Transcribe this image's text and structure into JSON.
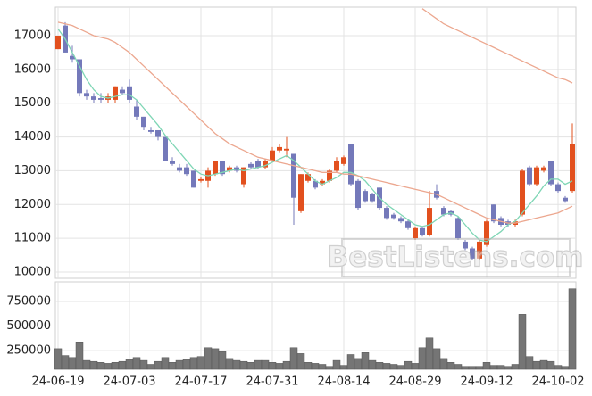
{
  "chart_data": [
    {
      "type": "candlestick",
      "up_color": "#e2501e",
      "down_color": "#7479ba",
      "ylim": [
        9815,
        17845
      ],
      "yticks": [
        10000,
        11000,
        12000,
        13000,
        14000,
        15000,
        16000,
        17000
      ],
      "grid": true,
      "watermark": "BestListens.com",
      "open": [
        16600,
        17300,
        16400,
        16300,
        15300,
        15200,
        15150,
        15100,
        15100,
        15400,
        15500,
        14900,
        14600,
        14200,
        14200,
        14000,
        13300,
        13100,
        13100,
        13000,
        12700,
        12700,
        12900,
        13300,
        13000,
        13100,
        12600,
        13200,
        13300,
        13100,
        13300,
        13600,
        13600,
        13500,
        11800,
        12700,
        12700,
        12600,
        12700,
        13000,
        13200,
        13800,
        12700,
        12400,
        12300,
        12500,
        11900,
        11700,
        11600,
        11500,
        11000,
        11300,
        11100,
        12400,
        11900,
        11800,
        11600,
        10900,
        10700,
        10400,
        10800,
        12000,
        11600,
        11500,
        11400,
        11700,
        13100,
        12600,
        13000,
        13300,
        12600,
        12200,
        12400
      ],
      "high": [
        17000,
        17400,
        16700,
        16300,
        15400,
        15300,
        15300,
        15300,
        15500,
        15500,
        15700,
        15100,
        14600,
        14300,
        14200,
        14000,
        13400,
        13200,
        13200,
        13000,
        12800,
        13100,
        13300,
        13300,
        13150,
        13150,
        13100,
        13250,
        13350,
        13350,
        13700,
        13800,
        14000,
        13500,
        12900,
        12950,
        12750,
        12750,
        13050,
        13400,
        13450,
        13800,
        12750,
        12450,
        12350,
        12500,
        11950,
        11750,
        11650,
        11550,
        11350,
        11350,
        12400,
        12600,
        11950,
        11850,
        11650,
        10950,
        10750,
        10950,
        11550,
        12000,
        11650,
        11550,
        11550,
        13050,
        13150,
        13150,
        13150,
        13300,
        12650,
        12250,
        14400
      ],
      "low": [
        16600,
        16500,
        16200,
        15200,
        15100,
        15000,
        15000,
        15000,
        15000,
        15250,
        15000,
        14500,
        14200,
        14100,
        13900,
        13300,
        13150,
        12950,
        12850,
        12500,
        12650,
        12500,
        12850,
        12850,
        12950,
        12950,
        12500,
        13050,
        13050,
        13050,
        13250,
        13550,
        13400,
        11400,
        11750,
        12650,
        12450,
        12550,
        12650,
        12950,
        13150,
        12550,
        11850,
        12050,
        12050,
        11850,
        11550,
        11550,
        11450,
        11250,
        10950,
        11050,
        11050,
        12150,
        11650,
        11650,
        10950,
        10650,
        10350,
        10350,
        10750,
        11450,
        11350,
        11350,
        11350,
        11650,
        12550,
        12550,
        12950,
        12550,
        12350,
        12050,
        12350
      ],
      "close": [
        17000,
        16500,
        16300,
        15300,
        15200,
        15100,
        15100,
        15200,
        15500,
        15300,
        15100,
        14600,
        14300,
        14150,
        14000,
        13300,
        13200,
        13000,
        12900,
        12500,
        12750,
        13000,
        13300,
        12900,
        13100,
        13000,
        13100,
        13100,
        13100,
        13300,
        13600,
        13700,
        13650,
        12200,
        12900,
        12900,
        12500,
        12700,
        13000,
        13300,
        13400,
        12600,
        11900,
        12100,
        12100,
        11900,
        11600,
        11600,
        11500,
        11300,
        11300,
        11100,
        11900,
        12200,
        11700,
        11700,
        11000,
        10700,
        10400,
        10900,
        11500,
        11500,
        11400,
        11400,
        11500,
        13000,
        12600,
        13100,
        13100,
        12600,
        12400,
        12100,
        13800
      ],
      "series": [
        {
          "name": "MA5",
          "color": "#7fd6b5",
          "values": [
            17200,
            16900,
            16500,
            16100,
            15700,
            15400,
            15200,
            15150,
            15200,
            15250,
            15250,
            15100,
            14850,
            14600,
            14350,
            14050,
            13800,
            13550,
            13300,
            13050,
            12900,
            12850,
            12900,
            12950,
            13000,
            13050,
            13000,
            13050,
            13100,
            13150,
            13250,
            13350,
            13450,
            13300,
            13100,
            12900,
            12700,
            12600,
            12700,
            12800,
            12950,
            12950,
            12850,
            12700,
            12450,
            12200,
            12000,
            11850,
            11700,
            11550,
            11400,
            11350,
            11400,
            11550,
            11700,
            11750,
            11650,
            11400,
            11150,
            10950,
            10900,
            11050,
            11200,
            11400,
            11500,
            11750,
            12000,
            12250,
            12550,
            12750,
            12750,
            12600,
            12700
          ]
        },
        {
          "name": "MA20",
          "color": "#eca78f",
          "values": [
            17400,
            17350,
            17300,
            17200,
            17100,
            17000,
            16950,
            16900,
            16800,
            16650,
            16500,
            16300,
            16100,
            15900,
            15700,
            15500,
            15300,
            15100,
            14900,
            14700,
            14500,
            14300,
            14100,
            13950,
            13800,
            13700,
            13600,
            13500,
            13400,
            13350,
            13300,
            13250,
            13200,
            13150,
            13100,
            13050,
            13000,
            12950,
            12950,
            12950,
            12900,
            12900,
            12850,
            12800,
            12750,
            12700,
            12650,
            12600,
            12550,
            12500,
            12450,
            12400,
            12350,
            12300,
            12200,
            12100,
            12000,
            11900,
            11800,
            11700,
            11600,
            11550,
            11500,
            11450,
            11450,
            11500,
            11550,
            11600,
            11650,
            11700,
            11750,
            11850,
            11950
          ]
        },
        {
          "name": "MA60",
          "color": "#eca78f",
          "values": [
            null,
            null,
            null,
            null,
            null,
            null,
            null,
            null,
            null,
            null,
            null,
            null,
            null,
            null,
            null,
            null,
            null,
            null,
            null,
            null,
            null,
            null,
            null,
            null,
            null,
            null,
            null,
            null,
            null,
            null,
            null,
            null,
            null,
            null,
            null,
            null,
            null,
            null,
            null,
            null,
            null,
            null,
            null,
            null,
            null,
            null,
            null,
            null,
            null,
            null,
            null,
            17800,
            17650,
            17500,
            17350,
            17250,
            17150,
            17050,
            16950,
            16850,
            16750,
            16650,
            16550,
            16450,
            16350,
            16250,
            16150,
            16050,
            15950,
            15850,
            15750,
            15700,
            15600
          ]
        }
      ]
    },
    {
      "type": "bar",
      "color": "#757575",
      "ylim": [
        60000,
        950000
      ],
      "yticks": [
        250000,
        500000,
        750000
      ],
      "grid": true,
      "categories": [
        "24-06-19",
        null,
        null,
        null,
        null,
        null,
        null,
        null,
        null,
        null,
        "24-07-03",
        null,
        null,
        null,
        null,
        null,
        null,
        null,
        null,
        null,
        "24-07-17",
        null,
        null,
        null,
        null,
        null,
        null,
        null,
        null,
        null,
        "24-07-31",
        null,
        null,
        null,
        null,
        null,
        null,
        null,
        null,
        null,
        "24-08-14",
        null,
        null,
        null,
        null,
        null,
        null,
        null,
        null,
        null,
        "24-08-29",
        null,
        null,
        null,
        null,
        null,
        null,
        null,
        null,
        null,
        "24-09-12",
        null,
        null,
        null,
        null,
        null,
        null,
        null,
        null,
        null,
        "24-10-02",
        null,
        null
      ],
      "values": [
        270000,
        200000,
        180000,
        330000,
        150000,
        140000,
        130000,
        120000,
        130000,
        140000,
        160000,
        180000,
        150000,
        110000,
        140000,
        180000,
        130000,
        150000,
        160000,
        180000,
        190000,
        280000,
        270000,
        240000,
        170000,
        150000,
        140000,
        130000,
        150000,
        150000,
        130000,
        120000,
        140000,
        280000,
        220000,
        130000,
        120000,
        110000,
        90000,
        150000,
        100000,
        210000,
        170000,
        230000,
        150000,
        130000,
        120000,
        110000,
        100000,
        140000,
        120000,
        280000,
        380000,
        270000,
        170000,
        130000,
        110000,
        90000,
        90000,
        90000,
        130000,
        100000,
        100000,
        90000,
        110000,
        620000,
        190000,
        140000,
        150000,
        140000,
        100000,
        90000,
        880000
      ]
    }
  ]
}
